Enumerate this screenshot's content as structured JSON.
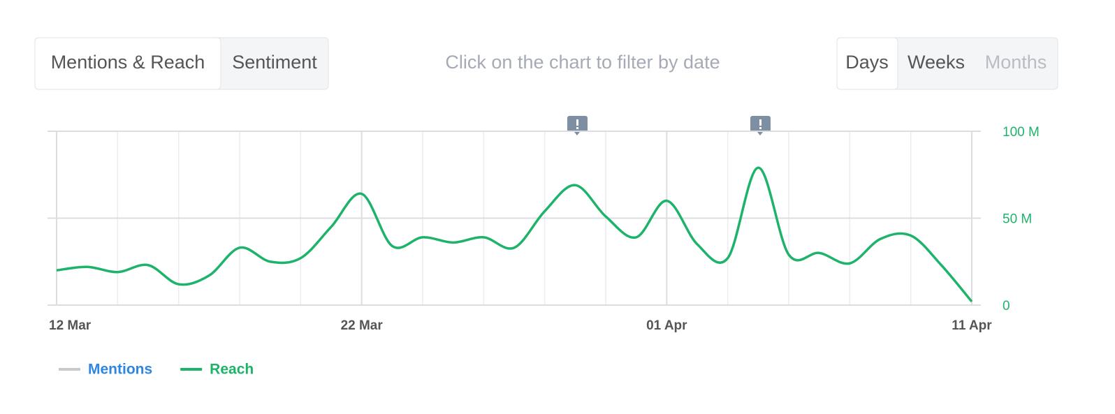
{
  "tabs": [
    "Mentions & Reach",
    "Sentiment"
  ],
  "hint": "Click on the chart to filter by date",
  "periods": [
    "Days",
    "Weeks",
    "Months"
  ],
  "chart_data": {
    "type": "line",
    "categories": [
      "12 Mar",
      null,
      null,
      null,
      null,
      null,
      null,
      null,
      null,
      null,
      "22 Mar",
      null,
      null,
      null,
      null,
      null,
      null,
      null,
      null,
      null,
      "01 Apr",
      null,
      null,
      null,
      null,
      null,
      null,
      null,
      null,
      null,
      "11 Apr"
    ],
    "series": [
      {
        "name": "Mentions",
        "color": "#c8c9cd"
      },
      {
        "name": "Reach",
        "color": "#1db36a",
        "values": [
          20,
          22,
          19,
          23,
          12,
          17,
          33,
          25,
          27,
          45,
          64,
          34,
          39,
          36,
          39,
          33,
          54,
          69,
          51,
          39,
          60,
          35,
          27,
          79,
          29,
          30,
          24,
          38,
          40,
          23,
          2
        ]
      }
    ],
    "ylim": [
      0,
      100
    ],
    "yticks": [
      0,
      {
        "value": 50,
        "label": "50 M"
      },
      {
        "value": 100,
        "label": "100 M"
      }
    ],
    "grid": true
  }
}
